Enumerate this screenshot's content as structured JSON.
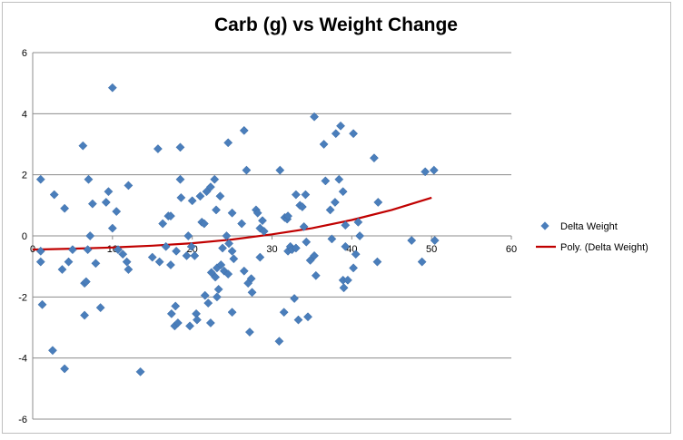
{
  "chart_data": {
    "type": "scatter",
    "title": "Carb (g) vs Weight Change",
    "xlabel": "",
    "ylabel": "",
    "xlim": [
      0,
      60
    ],
    "ylim": [
      -6,
      6
    ],
    "x_ticks": [
      0,
      10,
      20,
      30,
      40,
      50,
      60
    ],
    "y_ticks": [
      -6,
      -4,
      -2,
      0,
      2,
      4,
      6
    ],
    "grid": "horizontal",
    "legend_position": "right",
    "series": [
      {
        "name": "Delta Weight",
        "marker": "diamond",
        "color": "#4a7ebb",
        "points": [
          [
            1,
            1.85
          ],
          [
            1,
            -0.5
          ],
          [
            1,
            -0.85
          ],
          [
            1.2,
            -2.25
          ],
          [
            2.5,
            -3.75
          ],
          [
            2.7,
            1.35
          ],
          [
            3.7,
            -1.1
          ],
          [
            4,
            0.9
          ],
          [
            4,
            -4.35
          ],
          [
            4.5,
            -0.85
          ],
          [
            5,
            -0.45
          ],
          [
            6.3,
            2.95
          ],
          [
            6.5,
            -1.55
          ],
          [
            6.5,
            -2.6
          ],
          [
            6.7,
            -1.5
          ],
          [
            6.9,
            -0.45
          ],
          [
            7,
            1.85
          ],
          [
            7.2,
            0.0
          ],
          [
            7.5,
            1.05
          ],
          [
            7.9,
            -0.9
          ],
          [
            8.5,
            -2.35
          ],
          [
            9.2,
            1.1
          ],
          [
            9.5,
            1.45
          ],
          [
            10,
            4.85
          ],
          [
            10,
            0.25
          ],
          [
            10.5,
            0.8
          ],
          [
            10.7,
            -0.45
          ],
          [
            11.3,
            -0.6
          ],
          [
            11.8,
            -0.85
          ],
          [
            12,
            -1.1
          ],
          [
            12,
            1.65
          ],
          [
            13.5,
            -4.45
          ],
          [
            15,
            -0.7
          ],
          [
            15.7,
            2.85
          ],
          [
            15.9,
            -0.85
          ],
          [
            16.3,
            0.4
          ],
          [
            16.7,
            -0.35
          ],
          [
            17,
            0.65
          ],
          [
            17.3,
            -0.95
          ],
          [
            17.3,
            0.65
          ],
          [
            17.4,
            -2.55
          ],
          [
            17.8,
            -2.95
          ],
          [
            17.9,
            -2.3
          ],
          [
            18,
            -0.5
          ],
          [
            18.2,
            -2.85
          ],
          [
            18.5,
            2.9
          ],
          [
            18.5,
            1.85
          ],
          [
            18.6,
            1.25
          ],
          [
            19.3,
            -0.65
          ],
          [
            19.5,
            0.0
          ],
          [
            19.7,
            -2.95
          ],
          [
            19.9,
            -0.35
          ],
          [
            20,
            1.15
          ],
          [
            20.3,
            -0.65
          ],
          [
            20.5,
            -2.55
          ],
          [
            20.6,
            -2.75
          ],
          [
            21,
            1.3
          ],
          [
            21.2,
            0.45
          ],
          [
            21.5,
            0.4
          ],
          [
            21.6,
            -1.95
          ],
          [
            21.8,
            1.45
          ],
          [
            22,
            -2.2
          ],
          [
            22.3,
            1.6
          ],
          [
            22.3,
            -2.85
          ],
          [
            22.4,
            -1.2
          ],
          [
            22.8,
            1.85
          ],
          [
            22.9,
            -1.35
          ],
          [
            23,
            0.85
          ],
          [
            23.1,
            -1.05
          ],
          [
            23.1,
            -2.0
          ],
          [
            23.3,
            -1.75
          ],
          [
            23.5,
            1.3
          ],
          [
            23.6,
            -0.95
          ],
          [
            23.8,
            -0.4
          ],
          [
            24,
            -1.15
          ],
          [
            24.3,
            0.0
          ],
          [
            24.5,
            3.05
          ],
          [
            24.5,
            -1.25
          ],
          [
            24.6,
            -0.25
          ],
          [
            25,
            -0.5
          ],
          [
            25,
            0.75
          ],
          [
            25,
            -2.5
          ],
          [
            25.2,
            -0.75
          ],
          [
            26.2,
            0.4
          ],
          [
            26.5,
            -1.15
          ],
          [
            26.5,
            3.45
          ],
          [
            26.8,
            2.15
          ],
          [
            27,
            -1.55
          ],
          [
            27.2,
            -3.15
          ],
          [
            27.4,
            -1.4
          ],
          [
            27.5,
            -1.85
          ],
          [
            28,
            0.85
          ],
          [
            28.2,
            0.75
          ],
          [
            28.5,
            0.25
          ],
          [
            28.5,
            -0.7
          ],
          [
            28.8,
            0.5
          ],
          [
            29,
            0.15
          ],
          [
            30.9,
            -3.45
          ],
          [
            31,
            2.15
          ],
          [
            31.5,
            -2.5
          ],
          [
            31.6,
            0.6
          ],
          [
            31.9,
            0.55
          ],
          [
            32,
            0.65
          ],
          [
            32,
            -0.5
          ],
          [
            32.3,
            -0.35
          ],
          [
            32.5,
            -0.45
          ],
          [
            32.8,
            -2.05
          ],
          [
            33,
            1.35
          ],
          [
            33,
            -0.4
          ],
          [
            33.3,
            -2.75
          ],
          [
            33.5,
            1.0
          ],
          [
            33.8,
            0.95
          ],
          [
            34,
            0.3
          ],
          [
            34.2,
            1.35
          ],
          [
            34.3,
            -0.2
          ],
          [
            34.5,
            -2.65
          ],
          [
            34.8,
            -0.8
          ],
          [
            35.3,
            3.9
          ],
          [
            35.3,
            -0.65
          ],
          [
            35.5,
            -1.3
          ],
          [
            36.5,
            3.0
          ],
          [
            36.7,
            1.8
          ],
          [
            37.3,
            0.85
          ],
          [
            37.5,
            -0.1
          ],
          [
            37.9,
            1.1
          ],
          [
            38,
            3.35
          ],
          [
            38.4,
            1.85
          ],
          [
            38.6,
            3.6
          ],
          [
            38.9,
            1.45
          ],
          [
            38.9,
            -1.45
          ],
          [
            39,
            -1.7
          ],
          [
            39.2,
            0.35
          ],
          [
            39.2,
            -0.35
          ],
          [
            39.5,
            -1.45
          ],
          [
            40.2,
            3.35
          ],
          [
            40.2,
            -1.05
          ],
          [
            40.5,
            -0.6
          ],
          [
            40.8,
            0.45
          ],
          [
            41,
            0.0
          ],
          [
            42.8,
            2.55
          ],
          [
            43.3,
            1.1
          ],
          [
            43.2,
            -0.85
          ],
          [
            47.5,
            -0.15
          ],
          [
            48.8,
            -0.85
          ],
          [
            49.2,
            2.1
          ],
          [
            50.3,
            2.15
          ],
          [
            50.4,
            -0.15
          ]
        ]
      },
      {
        "name": "Poly. (Delta Weight)",
        "type": "trendline",
        "color": "#c00000",
        "x": [
          0,
          5,
          10,
          15,
          20,
          25,
          30,
          35,
          40,
          45,
          50
        ],
        "y": [
          -0.45,
          -0.42,
          -0.38,
          -0.32,
          -0.24,
          -0.12,
          0.05,
          0.25,
          0.52,
          0.85,
          1.25
        ]
      }
    ]
  }
}
